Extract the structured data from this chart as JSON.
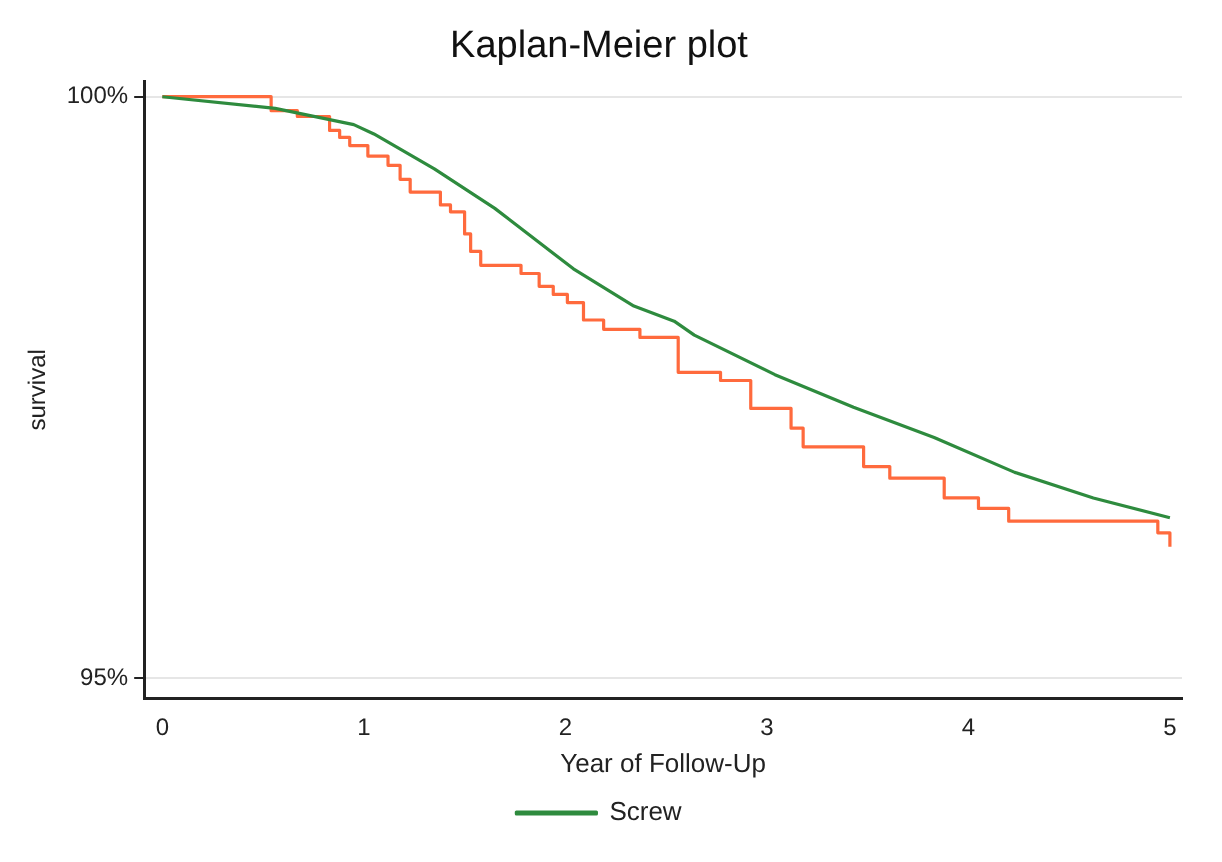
{
  "chart_data": {
    "type": "line",
    "title": "Kaplan-Meier plot",
    "xlabel": "Year of Follow-Up",
    "ylabel": "survival",
    "xlim": [
      -0.09,
      5.06
    ],
    "xticks": [
      0,
      1,
      2,
      3,
      4,
      5
    ],
    "ylim": [
      94.83,
      100.13
    ],
    "yticks": [
      {
        "value": 95,
        "label": "95%"
      },
      {
        "value": 100,
        "label": "100%"
      }
    ],
    "grid": "y",
    "legend": "bottom",
    "series": [
      {
        "name": "Screw",
        "color": "#2e8b3e",
        "x": [
          0,
          0.56,
          0.95,
          1.05,
          1.35,
          1.65,
          2.04,
          2.34,
          2.54,
          2.64,
          3.04,
          3.43,
          3.83,
          4.23,
          4.62,
          5.0
        ],
        "values": [
          100,
          99.9,
          99.76,
          99.68,
          99.38,
          99.04,
          98.52,
          98.2,
          98.07,
          97.95,
          97.61,
          97.33,
          97.07,
          96.77,
          96.55,
          96.38
        ]
      },
      {
        "color": "#ff6a3d",
        "type": "step",
        "x": [
          0,
          0.54,
          0.67,
          0.83,
          0.88,
          0.93,
          1.02,
          1.12,
          1.18,
          1.23,
          1.38,
          1.43,
          1.5,
          1.53,
          1.58,
          1.78,
          1.87,
          1.94,
          2.01,
          2.09,
          2.19,
          2.37,
          2.56,
          2.77,
          2.92,
          3.12,
          3.18,
          3.48,
          3.61,
          3.88,
          4.05,
          4.2,
          4.94,
          5.0
        ],
        "values": [
          100,
          99.88,
          99.83,
          99.71,
          99.65,
          99.58,
          99.49,
          99.41,
          99.29,
          99.18,
          99.07,
          99.01,
          98.82,
          98.67,
          98.55,
          98.48,
          98.37,
          98.3,
          98.23,
          98.08,
          98.0,
          97.93,
          97.63,
          97.56,
          97.32,
          97.15,
          96.99,
          96.82,
          96.72,
          96.55,
          96.46,
          96.35,
          96.25,
          96.13
        ]
      }
    ]
  }
}
